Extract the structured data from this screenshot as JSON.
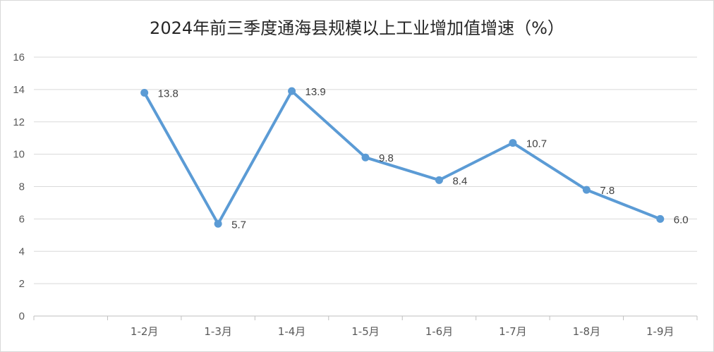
{
  "chart_data": {
    "type": "line",
    "title": "2024年前三季度通海县规模以上工业增加值增速（%）",
    "categories": [
      "",
      "1-2月",
      "1-3月",
      "1-4月",
      "1-5月",
      "1-6月",
      "1-7月",
      "1-8月",
      "1-9月"
    ],
    "series": [
      {
        "values": [
          null,
          13.8,
          5.7,
          13.9,
          9.8,
          8.4,
          10.7,
          7.8,
          6.0
        ]
      }
    ],
    "data_labels": [
      "",
      "13.8",
      "5.7",
      "13.9",
      "9.8",
      "8.4",
      "10.7",
      "7.8",
      "6.0"
    ],
    "yticks": [
      0,
      2,
      4,
      6,
      8,
      10,
      12,
      14,
      16
    ],
    "ylim": [
      0,
      16
    ],
    "grid": true,
    "legend": false,
    "colors": {
      "line": "#5B9BD5",
      "grid": "#d9d9d9",
      "axis": "#bfbfbf"
    }
  }
}
